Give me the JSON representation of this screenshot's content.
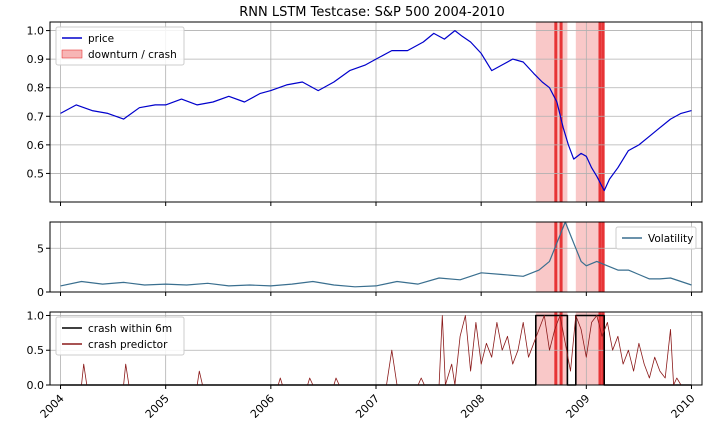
{
  "chart_data": [
    {
      "type": "line",
      "title": "RNN LSTM Testcase: S&P 500 2004-2010",
      "xlabel": "",
      "ylabel": "",
      "xlim": [
        2003.9,
        2010.1
      ],
      "ylim": [
        0.4,
        1.03
      ],
      "yticks": [
        "0.5",
        "0.6",
        "0.7",
        "0.8",
        "0.9",
        "1.0"
      ],
      "grid": true,
      "legend_position": "upper-left",
      "legend": [
        "price",
        "downturn / crash"
      ],
      "series": [
        {
          "name": "price",
          "color": "#0000cc",
          "x": [
            2004.0,
            2004.15,
            2004.3,
            2004.45,
            2004.6,
            2004.75,
            2004.9,
            2005.0,
            2005.15,
            2005.3,
            2005.45,
            2005.6,
            2005.75,
            2005.9,
            2006.0,
            2006.15,
            2006.3,
            2006.45,
            2006.6,
            2006.75,
            2006.9,
            2007.0,
            2007.15,
            2007.3,
            2007.45,
            2007.55,
            2007.65,
            2007.75,
            2007.82,
            2007.9,
            2008.0,
            2008.1,
            2008.2,
            2008.3,
            2008.4,
            2008.5,
            2008.58,
            2008.65,
            2008.72,
            2008.78,
            2008.83,
            2008.88,
            2008.95,
            2009.0,
            2009.05,
            2009.1,
            2009.17,
            2009.22,
            2009.3,
            2009.4,
            2009.5,
            2009.6,
            2009.7,
            2009.8,
            2009.9,
            2010.0
          ],
          "y": [
            0.71,
            0.74,
            0.72,
            0.71,
            0.69,
            0.73,
            0.74,
            0.74,
            0.76,
            0.74,
            0.75,
            0.77,
            0.75,
            0.78,
            0.79,
            0.81,
            0.82,
            0.79,
            0.82,
            0.86,
            0.88,
            0.9,
            0.93,
            0.93,
            0.96,
            0.99,
            0.97,
            1.0,
            0.98,
            0.96,
            0.92,
            0.86,
            0.88,
            0.9,
            0.89,
            0.85,
            0.82,
            0.8,
            0.75,
            0.66,
            0.6,
            0.55,
            0.57,
            0.56,
            0.52,
            0.49,
            0.44,
            0.48,
            0.52,
            0.58,
            0.6,
            0.63,
            0.66,
            0.69,
            0.71,
            0.72
          ]
        }
      ],
      "shaded_periods": [
        [
          2008.52,
          2008.82
        ],
        [
          2008.9,
          2009.17
        ]
      ],
      "crash_markers": [
        2008.71,
        2008.76,
        2009.13,
        2009.16
      ]
    },
    {
      "type": "line",
      "xlim": [
        2003.9,
        2010.1
      ],
      "ylim": [
        0,
        8
      ],
      "yticks": [
        "0",
        "5"
      ],
      "grid": true,
      "legend_position": "upper-right",
      "legend": [
        "Volatility"
      ],
      "series": [
        {
          "name": "Volatility",
          "color": "#3a6f8f",
          "x": [
            2004.0,
            2004.2,
            2004.4,
            2004.6,
            2004.8,
            2005.0,
            2005.2,
            2005.4,
            2005.6,
            2005.8,
            2006.0,
            2006.2,
            2006.4,
            2006.6,
            2006.8,
            2007.0,
            2007.2,
            2007.4,
            2007.6,
            2007.8,
            2008.0,
            2008.2,
            2008.4,
            2008.55,
            2008.65,
            2008.75,
            2008.8,
            2008.85,
            2008.9,
            2008.95,
            2009.0,
            2009.1,
            2009.2,
            2009.3,
            2009.4,
            2009.5,
            2009.6,
            2009.7,
            2009.8,
            2009.9,
            2010.0
          ],
          "y": [
            0.7,
            1.2,
            0.9,
            1.1,
            0.8,
            0.9,
            0.8,
            1.0,
            0.7,
            0.8,
            0.7,
            0.9,
            1.2,
            0.8,
            0.6,
            0.7,
            1.2,
            0.9,
            1.6,
            1.4,
            2.2,
            2.0,
            1.8,
            2.5,
            3.5,
            6.5,
            8.0,
            6.5,
            5.0,
            3.5,
            3.0,
            3.5,
            3.0,
            2.5,
            2.5,
            2.0,
            1.5,
            1.5,
            1.6,
            1.2,
            0.8
          ]
        }
      ],
      "shaded_periods": [
        [
          2008.52,
          2008.82
        ],
        [
          2008.9,
          2009.17
        ]
      ],
      "crash_markers": [
        2008.71,
        2008.76,
        2009.13,
        2009.16
      ]
    },
    {
      "type": "line",
      "xlim": [
        2003.9,
        2010.1
      ],
      "ylim": [
        0,
        1.05
      ],
      "yticks": [
        "0.0",
        "0.5",
        "1.0"
      ],
      "xticks": [
        "2004",
        "2005",
        "2006",
        "2007",
        "2008",
        "2009",
        "2010"
      ],
      "grid": true,
      "legend_position": "upper-left",
      "legend": [
        "crash within 6m",
        "crash predictor"
      ],
      "series": [
        {
          "name": "crash within 6m",
          "color": "#000000",
          "x": [
            2004.0,
            2008.52,
            2008.52,
            2008.82,
            2008.82,
            2008.9,
            2008.9,
            2009.17,
            2009.17,
            2010.0
          ],
          "y": [
            0,
            0,
            1,
            1,
            0,
            0,
            1,
            1,
            0,
            0
          ]
        },
        {
          "name": "crash predictor",
          "color": "#8b1a1a",
          "x": [
            2004.0,
            2004.2,
            2004.22,
            2004.25,
            2004.6,
            2004.62,
            2004.65,
            2005.3,
            2005.32,
            2005.35,
            2006.07,
            2006.09,
            2006.11,
            2006.35,
            2006.37,
            2006.4,
            2006.6,
            2006.62,
            2006.65,
            2007.1,
            2007.15,
            2007.2,
            2007.4,
            2007.43,
            2007.46,
            2007.6,
            2007.63,
            2007.66,
            2007.72,
            2007.75,
            2007.8,
            2007.85,
            2007.9,
            2007.95,
            2008.0,
            2008.05,
            2008.1,
            2008.15,
            2008.2,
            2008.25,
            2008.3,
            2008.35,
            2008.4,
            2008.45,
            2008.5,
            2008.55,
            2008.6,
            2008.65,
            2008.7,
            2008.75,
            2008.8,
            2008.85,
            2008.9,
            2008.95,
            2009.0,
            2009.05,
            2009.1,
            2009.15,
            2009.2,
            2009.25,
            2009.3,
            2009.35,
            2009.4,
            2009.45,
            2009.5,
            2009.55,
            2009.6,
            2009.65,
            2009.7,
            2009.75,
            2009.8,
            2009.83,
            2009.86,
            2009.9,
            2009.95,
            2010.0
          ],
          "y": [
            0,
            0,
            0.3,
            0,
            0,
            0.3,
            0,
            0,
            0.2,
            0,
            0,
            0.1,
            0,
            0,
            0.1,
            0,
            0,
            0.1,
            0,
            0,
            0.5,
            0,
            0,
            0.1,
            0,
            0,
            1.0,
            0,
            0.3,
            0,
            0.7,
            1.0,
            0.2,
            0.9,
            0.3,
            0.6,
            0.4,
            0.9,
            0.5,
            0.7,
            0.3,
            0.5,
            0.9,
            0.4,
            0.6,
            0.8,
            1.0,
            0.5,
            0.8,
            1.0,
            0.6,
            0.2,
            1.0,
            0.8,
            0.4,
            0.9,
            1.0,
            0.7,
            0.9,
            0.5,
            0.7,
            0.3,
            0.5,
            0.2,
            0.6,
            0.3,
            0.1,
            0.4,
            0.2,
            0.1,
            0.8,
            0.0,
            0.1,
            0.0,
            0.0,
            0.0
          ]
        }
      ],
      "shaded_periods": [
        [
          2008.52,
          2008.82
        ],
        [
          2008.9,
          2009.17
        ]
      ],
      "crash_markers": [
        2008.71,
        2008.76,
        2009.13,
        2009.16
      ]
    }
  ],
  "colors": {
    "price": "#0000cc",
    "volatility": "#3a6f8f",
    "crash_within": "#000000",
    "crash_predictor": "#8b1a1a",
    "shade": "#f7b5b5",
    "crash_marker": "#e41a1c",
    "grid": "#b0b0b0"
  }
}
